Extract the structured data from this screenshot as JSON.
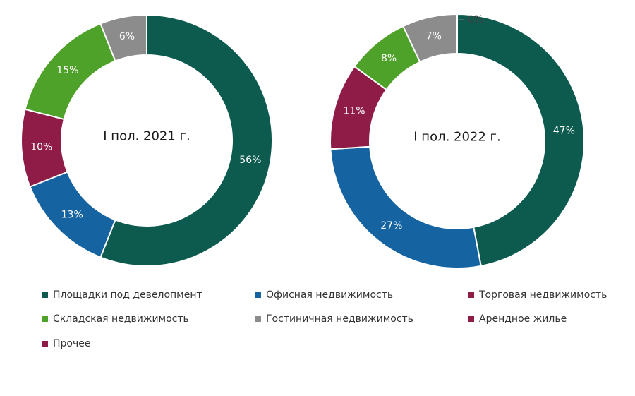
{
  "chart_data": [
    {
      "type": "pie",
      "center_label": "I пол. 2021 г.",
      "categories": [
        "Площадки под девелопмент",
        "Офисная недвижимость",
        "Торговая недвижимость",
        "Складская недвижимость",
        "Гостиничная недвижимость"
      ],
      "values": [
        56,
        13,
        10,
        15,
        6
      ],
      "value_labels": [
        "56%",
        "13%",
        "10%",
        "15%",
        "6%"
      ],
      "colors": [
        "#0d5a4e",
        "#1563a0",
        "#8e1c47",
        "#4fa229",
        "#8c8c8c"
      ]
    },
    {
      "type": "pie",
      "center_label": "I пол. 2022 г.",
      "categories": [
        "Площадки под девелопмент",
        "Офисная недвижимость",
        "Торговая недвижимость",
        "Складская недвижимость",
        "Гостиничная недвижимость",
        "Арендное жилье"
      ],
      "values": [
        47,
        27,
        11,
        8,
        7,
        0
      ],
      "value_labels": [
        "47%",
        "27%",
        "11%",
        "8%",
        "7%",
        "0%"
      ],
      "colors": [
        "#0d5a4e",
        "#1563a0",
        "#8e1c47",
        "#4fa229",
        "#8c8c8c",
        "#8e1c47"
      ]
    }
  ],
  "legend": {
    "placement": "bottom",
    "items": [
      {
        "label": "Площадки под девелопмент",
        "color": "#0d5a4e"
      },
      {
        "label": "Офисная недвижимость",
        "color": "#1563a0"
      },
      {
        "label": "Торговая недвижимость",
        "color": "#8e1c47"
      },
      {
        "label": "Складская недвижимость",
        "color": "#4fa229"
      },
      {
        "label": "Гостиничная недвижимость",
        "color": "#8c8c8c"
      },
      {
        "label": "Арендное жилье",
        "color": "#8e1c47"
      },
      {
        "label": "Прочее",
        "color": "#8e1c47"
      }
    ]
  }
}
